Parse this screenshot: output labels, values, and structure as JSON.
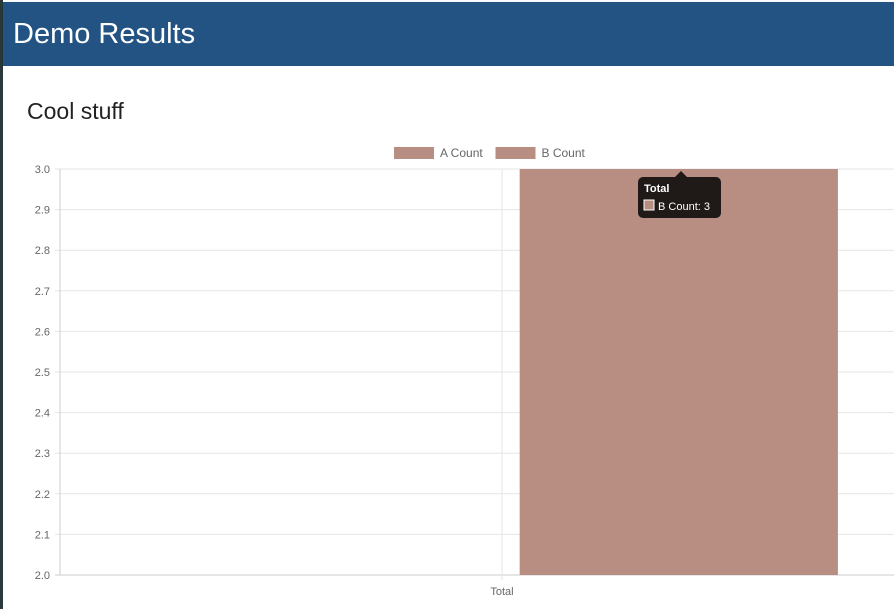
{
  "app_bar": {
    "title": "Demo Results"
  },
  "card": {
    "title": "Cool stuff"
  },
  "chart_data": {
    "type": "bar",
    "categories": [
      "Total"
    ],
    "series": [
      {
        "name": "A Count",
        "values": [
          null
        ],
        "color": "#b98e82"
      },
      {
        "name": "B Count",
        "values": [
          3
        ],
        "color": "#b98e82"
      }
    ],
    "ylim": [
      2.0,
      3.0
    ],
    "yticks": [
      "3.0",
      "2.9",
      "2.8",
      "2.7",
      "2.6",
      "2.5",
      "2.4",
      "2.3",
      "2.2",
      "2.1",
      "2.0"
    ],
    "grid": true,
    "legend": "top"
  },
  "tooltip": {
    "title": "Total",
    "label": "B Count: 3",
    "color": "#b98e82"
  }
}
